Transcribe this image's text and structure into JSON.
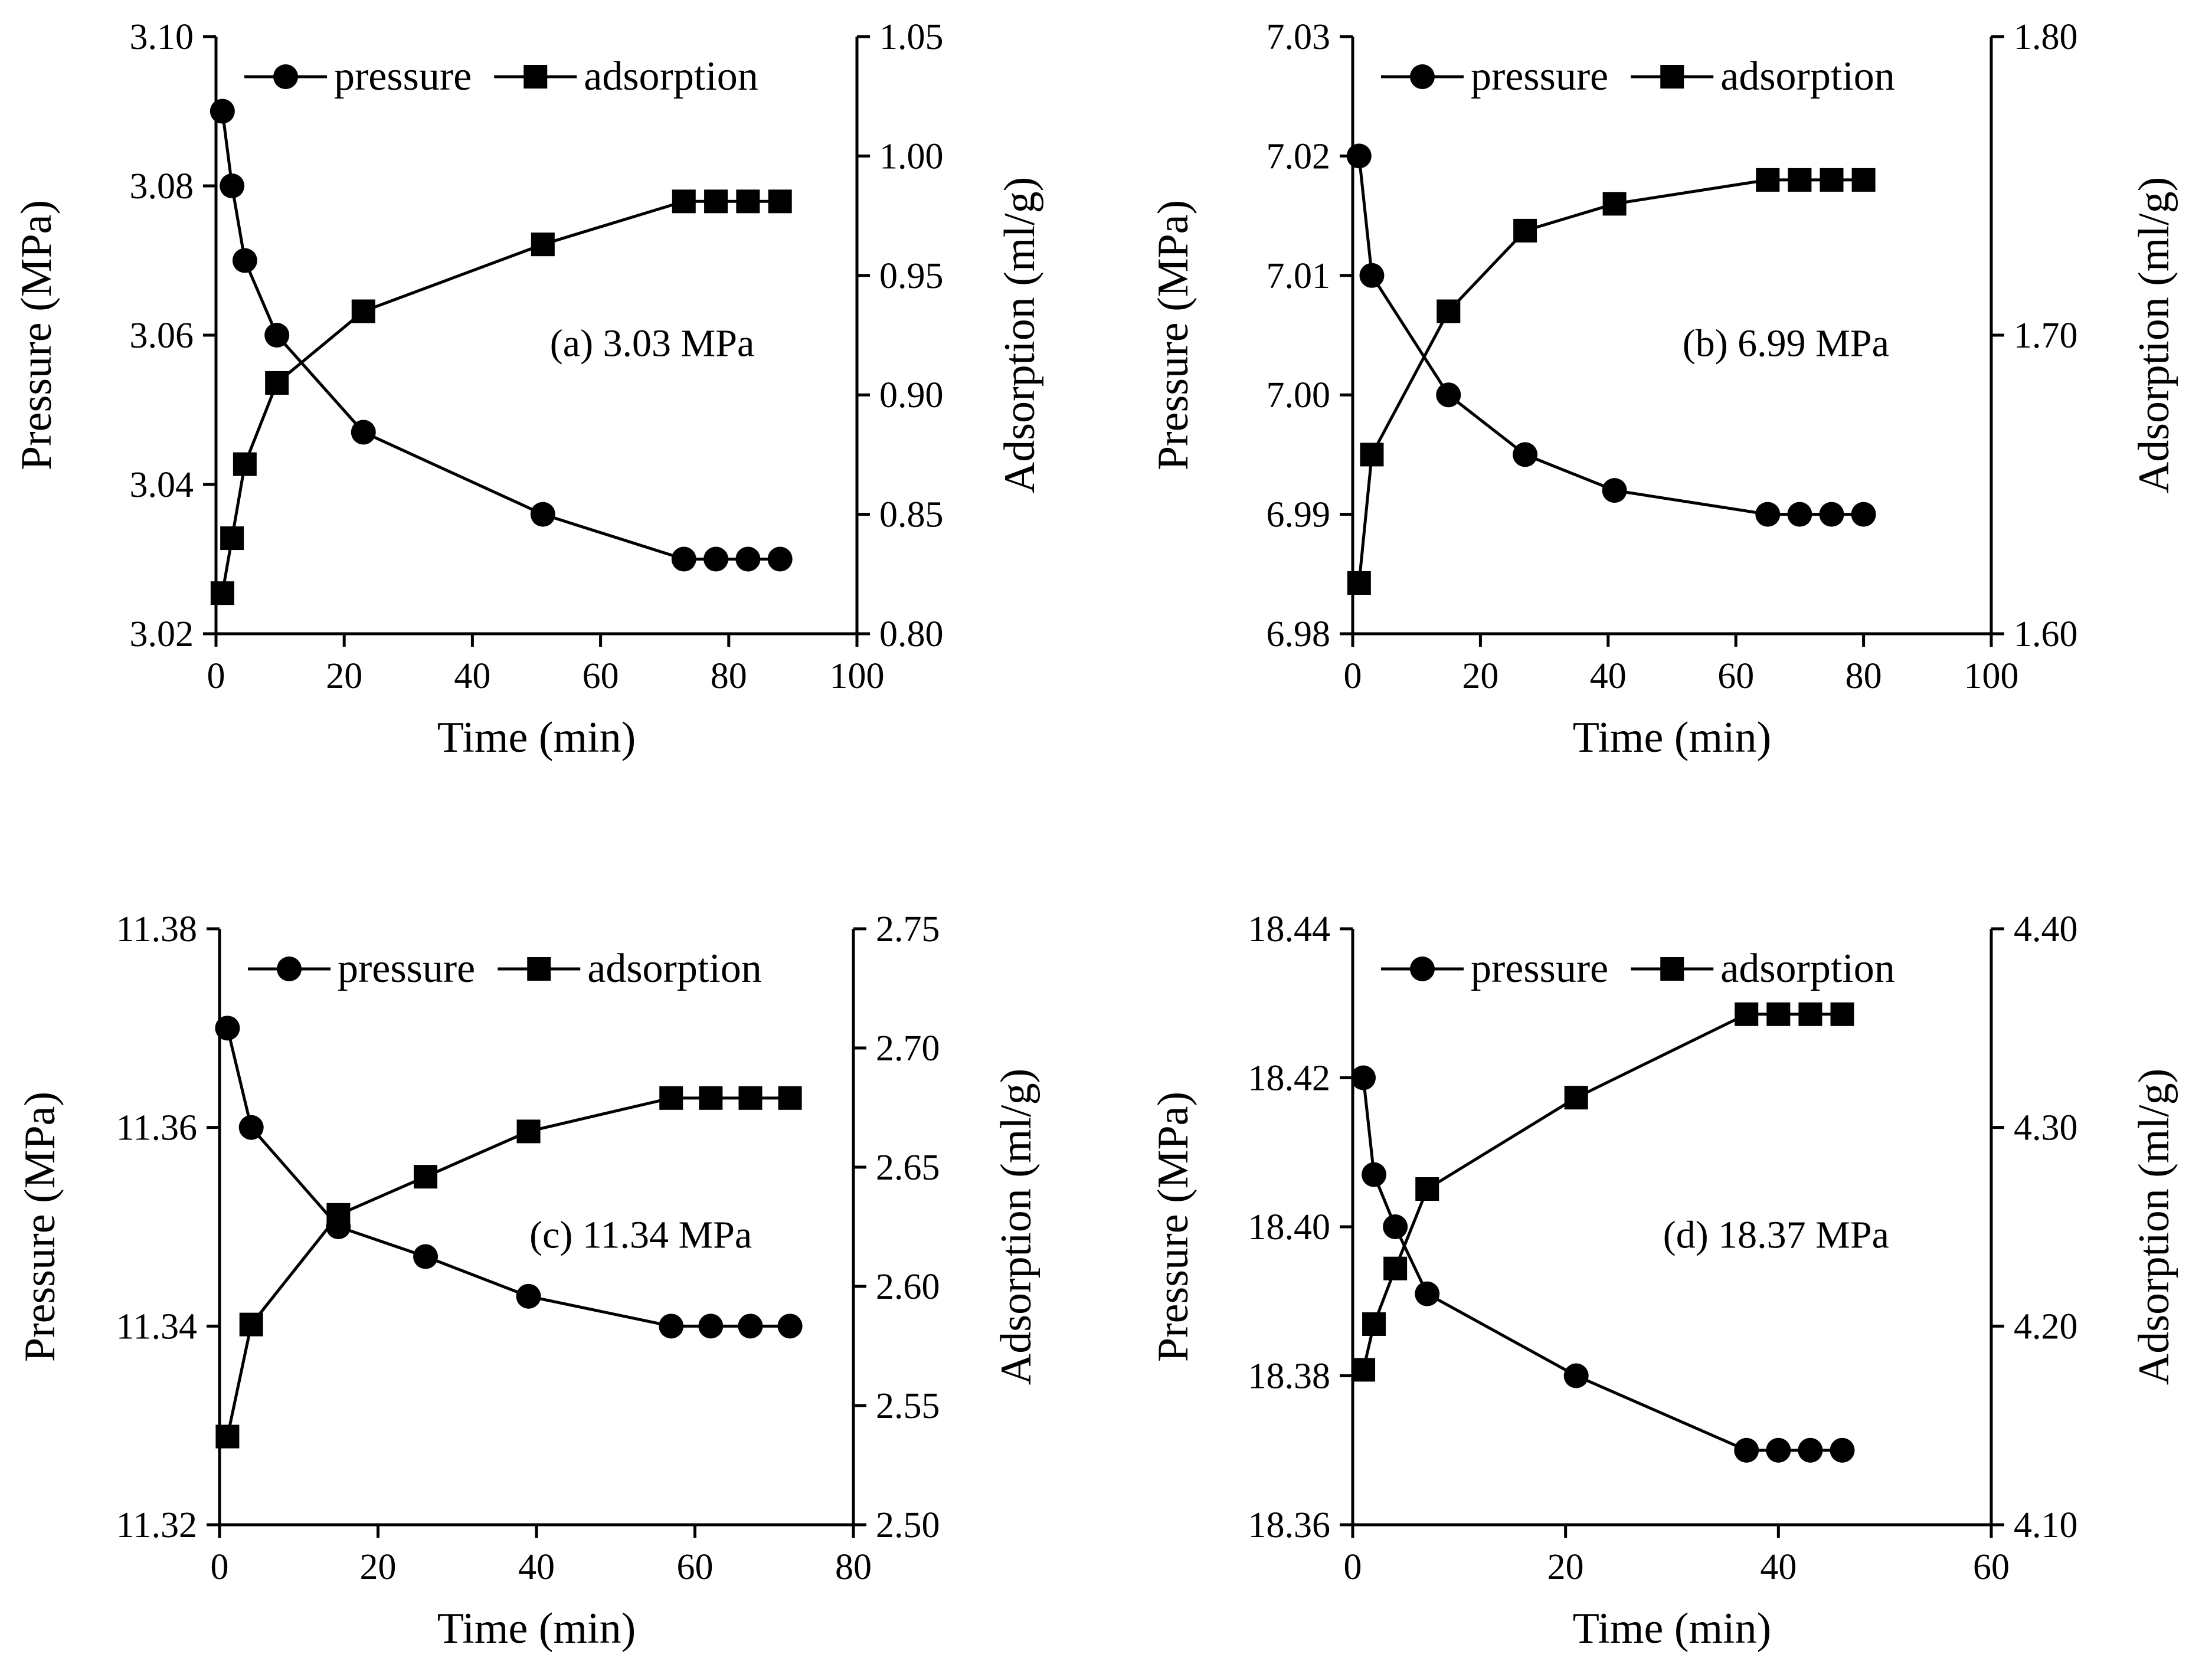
{
  "chart_data": [
    {
      "type": "line",
      "annotation": "(a) 3.03 MPa",
      "xlabel": "Time (min)",
      "ylabel_left": "Pressure (MPa)",
      "ylabel_right": "Adsorption (ml/g)",
      "xlim": [
        0,
        100
      ],
      "ylim_left": [
        3.02,
        3.1
      ],
      "ylim_right": [
        0.8,
        1.05
      ],
      "xticks": [
        "0",
        "20",
        "40",
        "60",
        "80",
        "100"
      ],
      "yticks_left": [
        "3.02",
        "3.04",
        "3.06",
        "3.08",
        "3.10"
      ],
      "yticks_right": [
        "0.80",
        "0.85",
        "0.90",
        "0.95",
        "1.00",
        "1.05"
      ],
      "legend_position": "top",
      "series": [
        {
          "name": "pressure",
          "marker": "circle",
          "axis": "left",
          "x": [
            1,
            2.5,
            4.5,
            9.5,
            23,
            51,
            73,
            78,
            83,
            88
          ],
          "y": [
            3.09,
            3.08,
            3.07,
            3.06,
            3.047,
            3.036,
            3.03,
            3.03,
            3.03,
            3.03
          ]
        },
        {
          "name": "adsorption",
          "marker": "square",
          "axis": "right",
          "x": [
            1,
            2.5,
            4.5,
            9.5,
            23,
            51,
            73,
            78,
            83,
            88
          ],
          "y": [
            0.817,
            0.84,
            0.871,
            0.905,
            0.935,
            0.963,
            0.981,
            0.981,
            0.981,
            0.981
          ]
        }
      ]
    },
    {
      "type": "line",
      "annotation": "(b) 6.99 MPa",
      "xlabel": "Time (min)",
      "ylabel_left": "Pressure (MPa)",
      "ylabel_right": "Adsorption (ml/g)",
      "xlim": [
        0,
        100
      ],
      "ylim_left": [
        6.98,
        7.03
      ],
      "ylim_right": [
        1.6,
        1.8
      ],
      "xticks": [
        "0",
        "20",
        "40",
        "60",
        "80",
        "100"
      ],
      "yticks_left": [
        "6.98",
        "6.99",
        "7.00",
        "7.01",
        "7.02",
        "7.03"
      ],
      "yticks_right": [
        "1.60",
        "1.70",
        "1.80"
      ],
      "legend_position": "top",
      "series": [
        {
          "name": "pressure",
          "marker": "circle",
          "axis": "left",
          "x": [
            1,
            3,
            15,
            27,
            41,
            65,
            70,
            75,
            80
          ],
          "y": [
            7.02,
            7.01,
            7.0,
            6.995,
            6.992,
            6.99,
            6.99,
            6.99,
            6.99
          ]
        },
        {
          "name": "adsorption",
          "marker": "square",
          "axis": "right",
          "x": [
            1,
            3,
            15,
            27,
            41,
            65,
            70,
            75,
            80
          ],
          "y": [
            1.617,
            1.66,
            1.708,
            1.735,
            1.744,
            1.752,
            1.752,
            1.752,
            1.752
          ]
        }
      ]
    },
    {
      "type": "line",
      "annotation": "(c) 11.34 MPa",
      "xlabel": "Time (min)",
      "ylabel_left": "Pressure (MPa)",
      "ylabel_right": "Adsorption (ml/g)",
      "xlim": [
        0,
        80
      ],
      "ylim_left": [
        11.32,
        11.38
      ],
      "ylim_right": [
        2.5,
        2.75
      ],
      "xticks": [
        "0",
        "20",
        "40",
        "60",
        "80"
      ],
      "yticks_left": [
        "11.32",
        "11.34",
        "11.36",
        "11.38"
      ],
      "yticks_right": [
        "2.50",
        "2.55",
        "2.60",
        "2.65",
        "2.70",
        "2.75"
      ],
      "legend_position": "top",
      "series": [
        {
          "name": "pressure",
          "marker": "circle",
          "axis": "left",
          "x": [
            1,
            4,
            15,
            26,
            39,
            57,
            62,
            67,
            72
          ],
          "y": [
            11.37,
            11.36,
            11.35,
            11.347,
            11.343,
            11.34,
            11.34,
            11.34,
            11.34
          ]
        },
        {
          "name": "adsorption",
          "marker": "square",
          "axis": "right",
          "x": [
            1,
            4,
            15,
            26,
            39,
            57,
            62,
            67,
            72
          ],
          "y": [
            2.537,
            2.584,
            2.63,
            2.646,
            2.665,
            2.679,
            2.679,
            2.679,
            2.679
          ]
        }
      ]
    },
    {
      "type": "line",
      "annotation": "(d) 18.37 MPa",
      "xlabel": "Time (min)",
      "ylabel_left": "Pressure (MPa)",
      "ylabel_right": "Adsorption (ml/g)",
      "xlim": [
        0,
        60
      ],
      "ylim_left": [
        18.36,
        18.44
      ],
      "ylim_right": [
        4.1,
        4.4
      ],
      "xticks": [
        "0",
        "20",
        "40",
        "60"
      ],
      "yticks_left": [
        "18.36",
        "18.38",
        "18.40",
        "18.42",
        "18.44"
      ],
      "yticks_right": [
        "4.10",
        "4.20",
        "4.30",
        "4.40"
      ],
      "legend_position": "top",
      "series": [
        {
          "name": "pressure",
          "marker": "circle",
          "axis": "left",
          "x": [
            1,
            2,
            4,
            7,
            21,
            37,
            40,
            43,
            46
          ],
          "y": [
            18.42,
            18.407,
            18.4,
            18.391,
            18.38,
            18.37,
            18.37,
            18.37,
            18.37
          ]
        },
        {
          "name": "adsorption",
          "marker": "square",
          "axis": "right",
          "x": [
            1,
            2,
            4,
            7,
            21,
            37,
            40,
            43,
            46
          ],
          "y": [
            4.178,
            4.201,
            4.229,
            4.269,
            4.315,
            4.357,
            4.357,
            4.357,
            4.357
          ]
        }
      ]
    }
  ]
}
